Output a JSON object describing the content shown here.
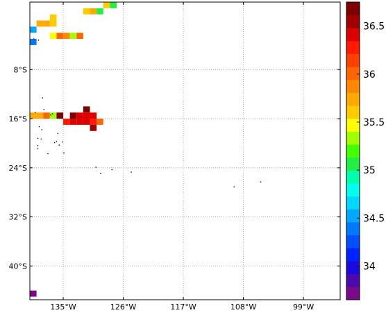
{
  "chart_data": {
    "type": "heatmap",
    "title": "",
    "xlabel": "",
    "ylabel": "",
    "xlim": [
      -140,
      -93.5
    ],
    "ylim": [
      -45.5,
      3
    ],
    "grid": true,
    "x_ticks": [
      {
        "value": -135,
        "label": "135°W"
      },
      {
        "value": -126,
        "label": "126°W"
      },
      {
        "value": -117,
        "label": "117°W"
      },
      {
        "value": -108,
        "label": "108°W"
      },
      {
        "value": -99,
        "label": "99°W"
      }
    ],
    "y_ticks": [
      {
        "value": -8,
        "label": "8°S"
      },
      {
        "value": -16,
        "label": "16°S"
      },
      {
        "value": -24,
        "label": "24°S"
      },
      {
        "value": -32,
        "label": "32°S"
      },
      {
        "value": -40,
        "label": "40°S"
      }
    ],
    "colorbar": {
      "min": 33.65,
      "max": 36.75,
      "ticks": [
        {
          "value": 34.0,
          "label": "34"
        },
        {
          "value": 34.5,
          "label": "34.5"
        },
        {
          "value": 35.0,
          "label": "35"
        },
        {
          "value": 35.5,
          "label": "35.5"
        },
        {
          "value": 36.0,
          "label": "36"
        },
        {
          "value": 36.5,
          "label": "36.5"
        }
      ],
      "colors": [
        "#7a0a8a",
        "#4a0ab0",
        "#1a0ae0",
        "#0022ff",
        "#0050ff",
        "#0078ff",
        "#00a8ff",
        "#00d8ff",
        "#00ffee",
        "#00ffaa",
        "#22ee44",
        "#44ff00",
        "#a0ff00",
        "#ffff00",
        "#ffcc00",
        "#ffaa00",
        "#ff8800",
        "#ff6600",
        "#ff4000",
        "#ff1a00",
        "#dd0000",
        "#a00000",
        "#800000"
      ]
    },
    "cells": [
      {
        "x": -128.5,
        "y": 2.5,
        "value": 35.6
      },
      {
        "x": -127.5,
        "y": 2.5,
        "value": 35.1
      },
      {
        "x": -131.5,
        "y": 1.5,
        "value": 35.6
      },
      {
        "x": -130.5,
        "y": 1.5,
        "value": 35.8
      },
      {
        "x": -129.5,
        "y": 1.5,
        "value": 35.1
      },
      {
        "x": -136.5,
        "y": 0.5,
        "value": 35.65
      },
      {
        "x": -138.5,
        "y": -0.5,
        "value": 35.75
      },
      {
        "x": -137.5,
        "y": -0.5,
        "value": 35.75
      },
      {
        "x": -136.5,
        "y": -0.5,
        "value": 35.65
      },
      {
        "x": -139.5,
        "y": -1.5,
        "value": 34.55
      },
      {
        "x": -136.5,
        "y": -2.5,
        "value": 35.5
      },
      {
        "x": -135.5,
        "y": -2.5,
        "value": 36.05
      },
      {
        "x": -134.5,
        "y": -2.5,
        "value": 35.9
      },
      {
        "x": -133.5,
        "y": -2.5,
        "value": 35.3
      },
      {
        "x": -132.5,
        "y": -2.5,
        "value": 36.05
      },
      {
        "x": -139.5,
        "y": -3.5,
        "value": 34.35
      },
      {
        "x": -131.5,
        "y": -14.5,
        "value": 36.7
      },
      {
        "x": -139.5,
        "y": -15.5,
        "value": 35.75
      },
      {
        "x": -138.5,
        "y": -15.5,
        "value": 35.75
      },
      {
        "x": -137.5,
        "y": -15.5,
        "value": 36.05
      },
      {
        "x": -136.5,
        "y": -15.5,
        "value": 35.3
      },
      {
        "x": -135.5,
        "y": -15.5,
        "value": 36.7
      },
      {
        "x": -133.5,
        "y": -15.5,
        "value": 36.7
      },
      {
        "x": -132.5,
        "y": -15.5,
        "value": 36.45
      },
      {
        "x": -131.5,
        "y": -15.5,
        "value": 36.45
      },
      {
        "x": -130.5,
        "y": -15.5,
        "value": 36.45
      },
      {
        "x": -134.5,
        "y": -16.5,
        "value": 36.25
      },
      {
        "x": -133.5,
        "y": -16.5,
        "value": 36.45
      },
      {
        "x": -132.5,
        "y": -16.5,
        "value": 36.45
      },
      {
        "x": -131.5,
        "y": -16.5,
        "value": 36.45
      },
      {
        "x": -130.5,
        "y": -16.5,
        "value": 36.25
      },
      {
        "x": -129.5,
        "y": -16.5,
        "value": 36.05
      },
      {
        "x": -130.5,
        "y": -17.5,
        "value": 36.6
      },
      {
        "x": -139.5,
        "y": -44.5,
        "value": 33.75
      }
    ],
    "islands": [
      [
        -139.4,
        -3.0
      ],
      [
        -138.7,
        -3.2
      ],
      [
        -138.1,
        -12.6
      ],
      [
        -138.6,
        -17.3
      ],
      [
        -138.2,
        -17.8
      ],
      [
        -137.9,
        -14.5
      ],
      [
        -138.8,
        -19.2
      ],
      [
        -138.3,
        -19.3
      ],
      [
        -138.8,
        -20.4
      ],
      [
        -138.8,
        -20.9
      ],
      [
        -137.3,
        -21.7
      ],
      [
        -136.3,
        -19.9
      ],
      [
        -136.0,
        -19.7
      ],
      [
        -135.6,
        -20.3
      ],
      [
        -135.1,
        -19.8
      ],
      [
        -134.9,
        -21.6
      ],
      [
        -136.6,
        -15.2
      ],
      [
        -135.8,
        -18.4
      ],
      [
        -130.1,
        -23.9
      ],
      [
        -129.4,
        -24.9
      ],
      [
        -127.7,
        -24.3
      ],
      [
        -124.8,
        -24.7
      ],
      [
        -109.4,
        -27.1
      ],
      [
        -105.4,
        -26.3
      ],
      [
        -139.2,
        -15.0
      ],
      [
        -136.9,
        -15.4
      ]
    ]
  }
}
